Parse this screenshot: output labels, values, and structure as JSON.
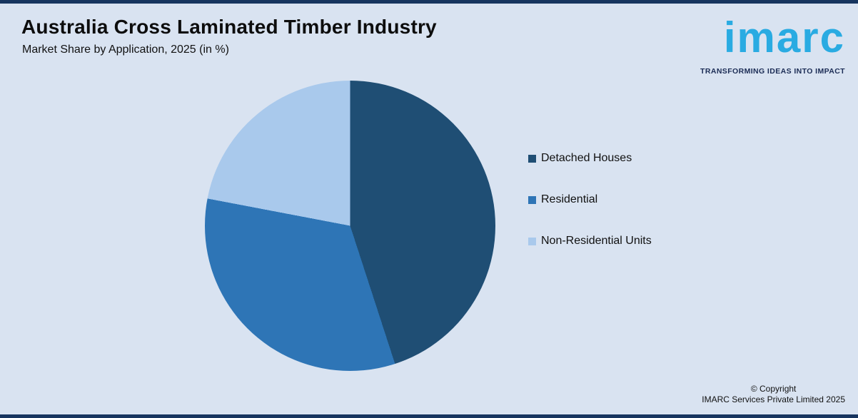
{
  "header": {
    "title": "Australia Cross Laminated Timber Industry",
    "subtitle": "Market Share by Application, 2025 (in %)"
  },
  "logo": {
    "text": "imarc",
    "tagline": "TRANSFORMING IDEAS INTO IMPACT",
    "brand_color": "#29abe2",
    "tagline_color": "#1b2c55"
  },
  "chart_data": {
    "type": "pie",
    "title": "Australia Cross Laminated Timber Industry",
    "subtitle": "Market Share by Application, 2025 (in %)",
    "categories": [
      "Detached Houses",
      "Residential",
      "Non-Residential Units"
    ],
    "values": [
      45,
      33,
      22
    ],
    "colors": [
      "#1f4e74",
      "#2e75b6",
      "#a9c9ec"
    ],
    "start_angle_deg": 0,
    "direction": "clockwise",
    "legend_position": "right",
    "data_labels": false
  },
  "footer": {
    "copyright_line1": "© Copyright",
    "copyright_line2": "IMARC Services Private Limited 2025"
  },
  "colors": {
    "background": "#d9e3f1",
    "edge_border": "#17355f",
    "text": "#111111"
  }
}
